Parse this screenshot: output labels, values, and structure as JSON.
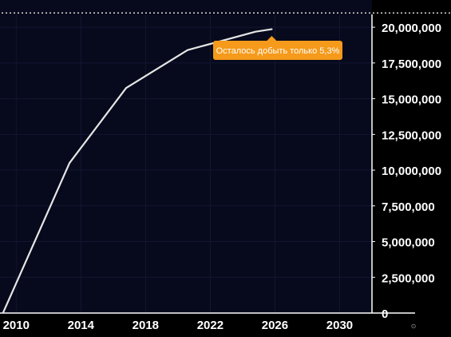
{
  "colors": {
    "background": "#000000",
    "plot_background": "#070a1c",
    "line": "#e6e6e6",
    "axis": "#ffffff",
    "grid": "#121632",
    "tooltip": "#f59a1a",
    "ceiling_dotted": "#d8d8d8"
  },
  "tooltip": {
    "text": "Осталось добыть только 5,3%"
  },
  "corner_icon": {
    "name": "settings-glyph-icon",
    "glyph": "⊙"
  },
  "chart_data": {
    "type": "line",
    "title": "",
    "xlabel": "",
    "ylabel": "",
    "xlim": [
      2009,
      2032
    ],
    "ylim": [
      0,
      20900000
    ],
    "x_ticks": [
      {
        "value": 2010,
        "label": "2010"
      },
      {
        "value": 2014,
        "label": "2014"
      },
      {
        "value": 2018,
        "label": "2018"
      },
      {
        "value": 2022,
        "label": "2022"
      },
      {
        "value": 2026,
        "label": "2026"
      },
      {
        "value": 2030,
        "label": "2030"
      }
    ],
    "y_ticks": [
      {
        "value": 0,
        "label": "0"
      },
      {
        "value": 2500000,
        "label": "2,500,000"
      },
      {
        "value": 5000000,
        "label": "5,000,000"
      },
      {
        "value": 7500000,
        "label": "7,500,000"
      },
      {
        "value": 10000000,
        "label": "10,000,000"
      },
      {
        "value": 12500000,
        "label": "12,500,000"
      },
      {
        "value": 15000000,
        "label": "15,000,000"
      },
      {
        "value": 17500000,
        "label": "17,500,000"
      },
      {
        "value": 20000000,
        "label": "20,000,000"
      }
    ],
    "series": [
      {
        "x": [
          2009.2,
          2013.3,
          2016.8,
          2020.6,
          2024.8,
          2025.8
        ],
        "y": [
          50000,
          10500000,
          15750000,
          18400000,
          19690000,
          19860000
        ]
      }
    ],
    "reference_lines": [
      {
        "value": 21000000,
        "style": "dotted"
      }
    ],
    "tooltip_point": {
      "x": 2025.8,
      "y": 19860000
    },
    "grid": true,
    "legend": "none"
  }
}
